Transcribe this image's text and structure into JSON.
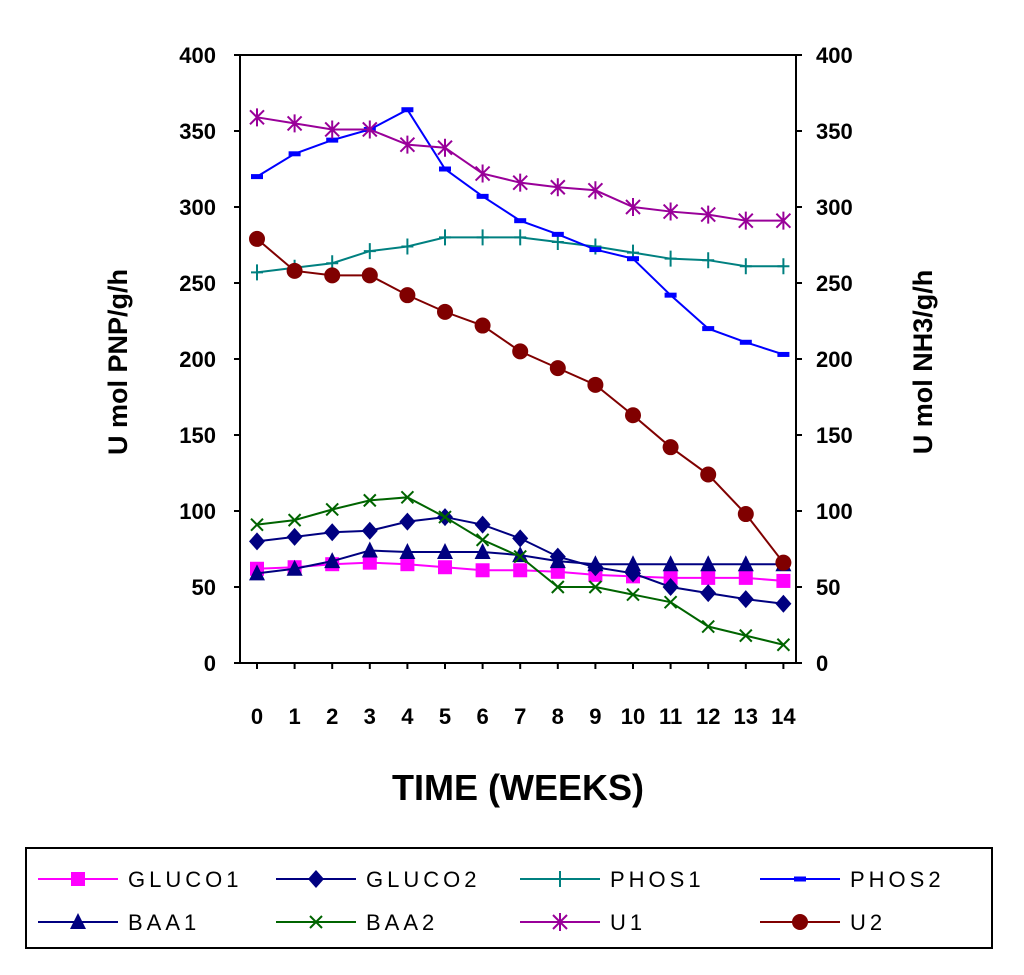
{
  "chart_data": {
    "type": "line",
    "title": "",
    "xlabel": "TIME (WEEKS)",
    "ylabel": "U mol PNP/g/h",
    "y2label": "U mol NH3/g/h",
    "ylim": [
      0,
      400
    ],
    "y2lim": [
      0,
      400
    ],
    "yticks": [
      "0",
      "50",
      "100",
      "150",
      "200",
      "250",
      "300",
      "350",
      "400"
    ],
    "categories": [
      "0",
      "1",
      "2",
      "3",
      "4",
      "5",
      "6",
      "7",
      "8",
      "9",
      "10",
      "11",
      "12",
      "13",
      "14"
    ],
    "x": [
      0,
      1,
      2,
      3,
      4,
      5,
      6,
      7,
      8,
      9,
      10,
      11,
      12,
      13,
      14
    ],
    "legend_position": "bottom",
    "series": [
      {
        "name": "GLUCO1",
        "color": "#ff00ff",
        "marker": "square",
        "values": [
          62,
          63,
          65,
          66,
          65,
          63,
          61,
          61,
          60,
          58,
          57,
          56,
          56,
          56,
          54
        ]
      },
      {
        "name": "GLUCO2",
        "color": "#000080",
        "marker": "diamond",
        "values": [
          80,
          83,
          86,
          87,
          93,
          96,
          91,
          82,
          70,
          63,
          59,
          50,
          46,
          42,
          39
        ]
      },
      {
        "name": "PHOS1",
        "color": "#008080",
        "marker": "plus",
        "values": [
          257,
          260,
          263,
          271,
          274,
          280,
          280,
          280,
          277,
          274,
          270,
          266,
          265,
          261,
          261
        ]
      },
      {
        "name": "PHOS2",
        "color": "#0000ff",
        "marker": "dash",
        "values": [
          320,
          335,
          344,
          351,
          364,
          325,
          307,
          291,
          282,
          272,
          266,
          242,
          220,
          211,
          203
        ]
      },
      {
        "name": "BAA1",
        "color": "#000080",
        "marker": "triangle",
        "values": [
          59,
          62,
          67,
          74,
          73,
          73,
          73,
          71,
          67,
          65,
          65,
          65,
          65,
          65,
          65
        ]
      },
      {
        "name": "BAA2",
        "color": "#006400",
        "marker": "x",
        "values": [
          91,
          94,
          101,
          107,
          109,
          96,
          81,
          70,
          50,
          50,
          45,
          40,
          24,
          18,
          12
        ]
      },
      {
        "name": "U1",
        "color": "#990099",
        "marker": "star",
        "values": [
          359,
          355,
          351,
          351,
          341,
          339,
          322,
          316,
          313,
          311,
          300,
          297,
          295,
          291,
          291
        ]
      },
      {
        "name": "U2",
        "color": "#800000",
        "marker": "circle",
        "values": [
          279,
          258,
          255,
          255,
          242,
          231,
          222,
          205,
          194,
          183,
          163,
          142,
          124,
          98,
          66
        ]
      }
    ]
  }
}
